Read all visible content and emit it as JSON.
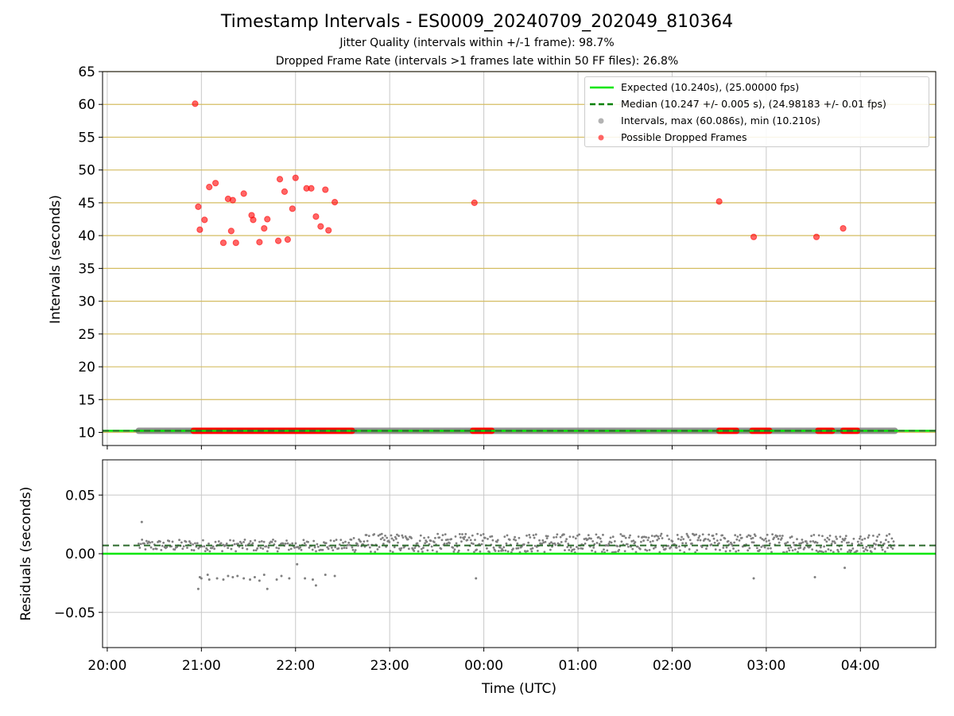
{
  "figure": {
    "title": "Timestamp Intervals - ES0009_20240709_202049_810364",
    "subtitle_1": "Jitter Quality (intervals within +/-1 frame): 98.7%",
    "subtitle_2": "Dropped Frame Rate (intervals >1 frames late within 50 FF files): 26.8%"
  },
  "colors": {
    "expected": "#00e600",
    "median": "#008000",
    "intervals": "#808080",
    "dropped": "#ff0000",
    "top_grid": "#d4bd62",
    "grid": "#c8c8c8"
  },
  "chart_data": [
    {
      "type": "scatter",
      "ylabel": "Intervals (seconds)",
      "xlabel": "",
      "ylim": [
        8,
        65
      ],
      "yticks": [
        10,
        15,
        20,
        25,
        30,
        35,
        40,
        45,
        50,
        55,
        60,
        65
      ],
      "xlim_hours": [
        19.95,
        28.8
      ],
      "xticks": [
        "20:00",
        "21:00",
        "22:00",
        "23:00",
        "00:00",
        "01:00",
        "02:00",
        "03:00",
        "04:00"
      ],
      "grid": "horizontal",
      "legend_position": "top-right",
      "legend": [
        "Expected (10.240s), (25.00000 fps)",
        "Median (10.247 +/- 0.005 s), (24.98183 +/- 0.01 fps)",
        "Intervals, max (60.086s), min (10.210s)",
        "Possible Dropped Frames"
      ],
      "expected": 10.24,
      "median": 10.247,
      "interval_band": {
        "start": "20:20",
        "end": "04:22",
        "value": 10.24
      },
      "dropped_band_segments": [
        [
          "20:55",
          "22:36"
        ],
        [
          "23:53",
          "00:05"
        ],
        [
          "02:30",
          "02:41"
        ],
        [
          "02:51",
          "03:02"
        ],
        [
          "03:33",
          "03:42"
        ],
        [
          "03:49",
          "03:58"
        ]
      ],
      "dropped_points": [
        {
          "x": "20:56",
          "y": 60.1
        },
        {
          "x": "20:58",
          "y": 44.4
        },
        {
          "x": "20:59",
          "y": 40.9
        },
        {
          "x": "21:02",
          "y": 42.4
        },
        {
          "x": "21:05",
          "y": 47.4
        },
        {
          "x": "21:09",
          "y": 48.0
        },
        {
          "x": "21:14",
          "y": 38.9
        },
        {
          "x": "21:17",
          "y": 45.6
        },
        {
          "x": "21:19",
          "y": 40.7
        },
        {
          "x": "21:20",
          "y": 45.4
        },
        {
          "x": "21:22",
          "y": 38.9
        },
        {
          "x": "21:27",
          "y": 46.4
        },
        {
          "x": "21:32",
          "y": 43.1
        },
        {
          "x": "21:33",
          "y": 42.4
        },
        {
          "x": "21:37",
          "y": 39.0
        },
        {
          "x": "21:40",
          "y": 41.1
        },
        {
          "x": "21:42",
          "y": 42.5
        },
        {
          "x": "21:49",
          "y": 39.2
        },
        {
          "x": "21:50",
          "y": 48.6
        },
        {
          "x": "21:53",
          "y": 46.7
        },
        {
          "x": "21:55",
          "y": 39.4
        },
        {
          "x": "21:58",
          "y": 44.1
        },
        {
          "x": "22:00",
          "y": 48.8
        },
        {
          "x": "22:07",
          "y": 47.2
        },
        {
          "x": "22:10",
          "y": 47.2
        },
        {
          "x": "22:13",
          "y": 42.9
        },
        {
          "x": "22:16",
          "y": 41.4
        },
        {
          "x": "22:19",
          "y": 47.0
        },
        {
          "x": "22:21",
          "y": 40.8
        },
        {
          "x": "22:25",
          "y": 45.1
        },
        {
          "x": "23:54",
          "y": 45.0
        },
        {
          "x": "02:30",
          "y": 45.2
        },
        {
          "x": "02:52",
          "y": 39.8
        },
        {
          "x": "03:32",
          "y": 39.8
        },
        {
          "x": "03:49",
          "y": 41.1
        }
      ]
    },
    {
      "type": "scatter",
      "ylabel": "Residuals (seconds)",
      "xlabel": "Time (UTC)",
      "ylim": [
        -0.08,
        0.08
      ],
      "yticks": [
        0.05,
        0.0,
        -0.05
      ],
      "ytick_labels": [
        "0.05",
        "0.00",
        "−0.05"
      ],
      "xlim_hours": [
        19.95,
        28.8
      ],
      "xticks": [
        "20:00",
        "21:00",
        "22:00",
        "23:00",
        "00:00",
        "01:00",
        "02:00",
        "03:00",
        "04:00"
      ],
      "grid": "both",
      "expected_residual": 0.0,
      "median_residual": 0.007,
      "residual_range_before_2235": [
        0.002,
        0.012
      ],
      "residual_range_after_2235": [
        0.001,
        0.017
      ],
      "negative_residuals": [
        {
          "x": "20:58",
          "y": -0.03
        },
        {
          "x": "20:59",
          "y": -0.02
        },
        {
          "x": "21:00",
          "y": -0.021
        },
        {
          "x": "21:04",
          "y": -0.018
        },
        {
          "x": "21:05",
          "y": -0.022
        },
        {
          "x": "21:10",
          "y": -0.021
        },
        {
          "x": "21:14",
          "y": -0.022
        },
        {
          "x": "21:17",
          "y": -0.019
        },
        {
          "x": "21:20",
          "y": -0.02
        },
        {
          "x": "21:23",
          "y": -0.019
        },
        {
          "x": "21:27",
          "y": -0.021
        },
        {
          "x": "21:31",
          "y": -0.022
        },
        {
          "x": "21:34",
          "y": -0.02
        },
        {
          "x": "21:37",
          "y": -0.023
        },
        {
          "x": "21:40",
          "y": -0.018
        },
        {
          "x": "21:42",
          "y": -0.03
        },
        {
          "x": "21:48",
          "y": -0.022
        },
        {
          "x": "21:51",
          "y": -0.019
        },
        {
          "x": "21:56",
          "y": -0.021
        },
        {
          "x": "22:01",
          "y": -0.009
        },
        {
          "x": "22:06",
          "y": -0.021
        },
        {
          "x": "22:11",
          "y": -0.022
        },
        {
          "x": "22:13",
          "y": -0.027
        },
        {
          "x": "22:19",
          "y": -0.018
        },
        {
          "x": "22:25",
          "y": -0.019
        },
        {
          "x": "23:55",
          "y": -0.021
        },
        {
          "x": "02:52",
          "y": -0.021
        },
        {
          "x": "03:31",
          "y": -0.02
        },
        {
          "x": "03:50",
          "y": -0.012
        }
      ],
      "outlier_positive": {
        "x": "20:22",
        "y": 0.027
      }
    }
  ]
}
